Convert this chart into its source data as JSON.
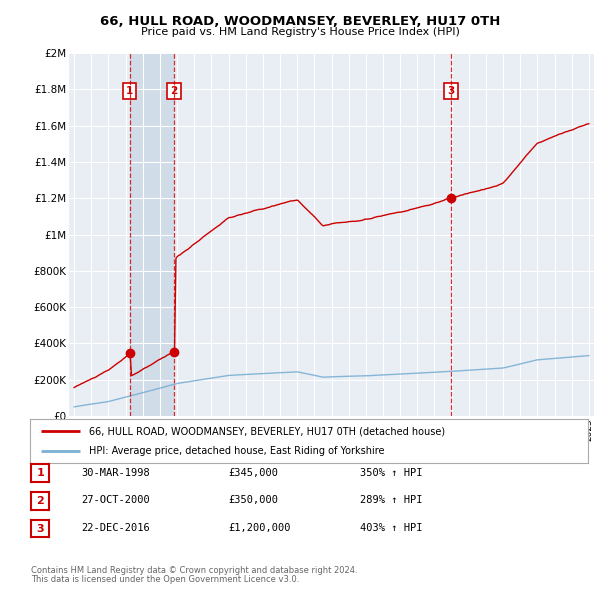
{
  "title": "66, HULL ROAD, WOODMANSEY, BEVERLEY, HU17 0TH",
  "subtitle": "Price paid vs. HM Land Registry's House Price Index (HPI)",
  "legend_property": "66, HULL ROAD, WOODMANSEY, BEVERLEY, HU17 0TH (detached house)",
  "legend_hpi": "HPI: Average price, detached house, East Riding of Yorkshire",
  "footnote1": "Contains HM Land Registry data © Crown copyright and database right 2024.",
  "footnote2": "This data is licensed under the Open Government Licence v3.0.",
  "sales": [
    {
      "label": "1",
      "date": "30-MAR-1998",
      "price": "£345,000",
      "hpi_pct": "350% ↑ HPI",
      "year": 1998.24,
      "value": 345000
    },
    {
      "label": "2",
      "date": "27-OCT-2000",
      "price": "£350,000",
      "hpi_pct": "289% ↑ HPI",
      "year": 2000.82,
      "value": 350000
    },
    {
      "label": "3",
      "date": "22-DEC-2016",
      "price": "£1,200,000",
      "hpi_pct": "403% ↑ HPI",
      "year": 2016.97,
      "value": 1200000
    }
  ],
  "property_color": "#cc0000",
  "hpi_color": "#7bafd4",
  "background_color": "#e8eef4",
  "shade_color": "#d0dce8",
  "grid_color": "#ffffff",
  "ylim": [
    0,
    2000000
  ],
  "xlim_start": 1994.7,
  "xlim_end": 2025.3,
  "yticks": [
    0,
    200000,
    400000,
    600000,
    800000,
    1000000,
    1200000,
    1400000,
    1600000,
    1800000,
    2000000
  ],
  "ylabels": [
    "£0",
    "£200K",
    "£400K",
    "£600K",
    "£800K",
    "£1M",
    "£1.2M",
    "£1.4M",
    "£1.6M",
    "£1.8M",
    "£2M"
  ]
}
